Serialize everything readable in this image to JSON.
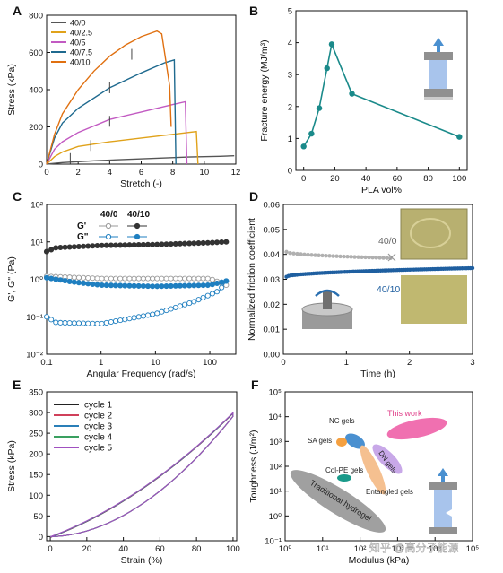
{
  "colors": {
    "c40_0": "#555555",
    "c40_2_5": "#e0a21a",
    "c40_5": "#c25ac2",
    "c40_7_5": "#1f6a8f",
    "c40_10": "#e07010",
    "panelB": "#1a8a8a",
    "panelD_grey": "#b0b0b0",
    "panelD_blue": "#1f5fa0",
    "cycles": [
      "#222222",
      "#d0405a",
      "#2a7fb8",
      "#3aa060",
      "#a050c0"
    ],
    "F_pink": "#f070b0",
    "F_blue": "#4a90d0",
    "F_orange": "#f5a040",
    "F_peach": "#f5c090",
    "F_violet": "#c8a8e8",
    "F_teal": "#1a9a8a",
    "F_grey": "#a0a0a0"
  },
  "chart_data": [
    {
      "id": "A",
      "panel_label": "A",
      "type": "line",
      "xlabel": "Stretch (-)",
      "ylabel": "Stress (kPa)",
      "xlim": [
        0,
        12
      ],
      "ylim": [
        0,
        800
      ],
      "xticks": [
        "0",
        "2",
        "4",
        "6",
        "8",
        "10",
        "12"
      ],
      "yticks": [
        "0",
        "200",
        "400",
        "600",
        "800"
      ],
      "legend": "top-left",
      "series": [
        {
          "name": "40/0",
          "color": "#555555",
          "points": [
            [
              0,
              0
            ],
            [
              1,
              8
            ],
            [
              3,
              18
            ],
            [
              5,
              25
            ],
            [
              7,
              32
            ],
            [
              9,
              38
            ],
            [
              11,
              42
            ],
            [
              11.9,
              45
            ]
          ]
        },
        {
          "name": "40/2.5",
          "color": "#e0a21a",
          "points": [
            [
              0,
              0
            ],
            [
              0.5,
              40
            ],
            [
              1,
              65
            ],
            [
              2,
              95
            ],
            [
              4,
              120
            ],
            [
              6,
              140
            ],
            [
              8,
              160
            ],
            [
              9.5,
              175
            ],
            [
              9.6,
              0
            ]
          ]
        },
        {
          "name": "40/5",
          "color": "#c25ac2",
          "points": [
            [
              0,
              0
            ],
            [
              0.5,
              80
            ],
            [
              1,
              120
            ],
            [
              2,
              170
            ],
            [
              4,
              240
            ],
            [
              6,
              280
            ],
            [
              8,
              320
            ],
            [
              8.8,
              335
            ],
            [
              8.9,
              0
            ]
          ]
        },
        {
          "name": "40/7.5",
          "color": "#1f6a8f",
          "points": [
            [
              0,
              0
            ],
            [
              0.5,
              140
            ],
            [
              1,
              220
            ],
            [
              2,
              300
            ],
            [
              4,
              410
            ],
            [
              6,
              490
            ],
            [
              7.5,
              545
            ],
            [
              8.1,
              560
            ],
            [
              8.2,
              0
            ]
          ]
        },
        {
          "name": "40/10",
          "color": "#e07010",
          "points": [
            [
              0,
              0
            ],
            [
              0.5,
              160
            ],
            [
              1,
              270
            ],
            [
              2,
              400
            ],
            [
              3,
              500
            ],
            [
              4,
              580
            ],
            [
              5,
              640
            ],
            [
              6,
              685
            ],
            [
              7,
              715
            ],
            [
              7.3,
              700
            ],
            [
              7.8,
              420
            ],
            [
              7.9,
              200
            ]
          ]
        }
      ]
    },
    {
      "id": "B",
      "panel_label": "B",
      "type": "line",
      "xlabel": "PLA vol%",
      "ylabel": "Fracture energy (MJ/m³)",
      "xlim": [
        -5,
        105
      ],
      "ylim": [
        0,
        5
      ],
      "xticks": [
        "0",
        "20",
        "40",
        "60",
        "80",
        "100"
      ],
      "yticks": [
        "0",
        "1",
        "2",
        "3",
        "4",
        "5"
      ],
      "series": [
        {
          "name": "",
          "color": "#1a8a8a",
          "points": [
            [
              0,
              0.75
            ],
            [
              5,
              1.15
            ],
            [
              10,
              1.95
            ],
            [
              15,
              3.2
            ],
            [
              18,
              3.95
            ],
            [
              31,
              2.4
            ],
            [
              100,
              1.05
            ]
          ]
        }
      ]
    },
    {
      "id": "C",
      "panel_label": "C",
      "type": "line",
      "xlabel": "Angular Frequency (rad/s)",
      "ylabel": "G', G\" (Pa)",
      "log_x": true,
      "log_y": true,
      "xlim": [
        0.1,
        300
      ],
      "ylim": [
        0.01,
        100
      ],
      "xticks": [
        "0.1",
        "1",
        "10",
        "100"
      ],
      "yticks": [
        "10⁻²",
        "10⁻¹",
        "10⁰",
        "10¹",
        "10²"
      ],
      "legend_headers": [
        "40/0",
        "40/10"
      ],
      "legend_rows": [
        "G'",
        "G\""
      ],
      "series": [
        {
          "name": "G' 40/0",
          "color": "#999999",
          "hollow": true,
          "points": [
            [
              0.1,
              1.2
            ],
            [
              1,
              1.05
            ],
            [
              10,
              1.05
            ],
            [
              100,
              1.05
            ],
            [
              200,
              0.7
            ]
          ]
        },
        {
          "name": "G\" 40/0",
          "color": "#1f7fc0",
          "hollow": true,
          "points": [
            [
              0.1,
              0.1
            ],
            [
              0.15,
              0.07
            ],
            [
              1,
              0.065
            ],
            [
              10,
              0.12
            ],
            [
              50,
              0.25
            ],
            [
              150,
              0.5
            ],
            [
              200,
              0.9
            ]
          ]
        },
        {
          "name": "G' 40/10",
          "color": "#333333",
          "hollow": false,
          "points": [
            [
              0.1,
              5.5
            ],
            [
              0.15,
              7
            ],
            [
              1,
              8
            ],
            [
              10,
              8.5
            ],
            [
              100,
              9.5
            ],
            [
              200,
              10
            ]
          ]
        },
        {
          "name": "G\" 40/10",
          "color": "#1f7fc0",
          "hollow": false,
          "points": [
            [
              0.1,
              1.1
            ],
            [
              0.3,
              0.85
            ],
            [
              1,
              0.7
            ],
            [
              10,
              0.65
            ],
            [
              100,
              0.7
            ],
            [
              200,
              0.9
            ]
          ]
        }
      ]
    },
    {
      "id": "D",
      "panel_label": "D",
      "type": "scatter",
      "xlabel": "Time (h)",
      "ylabel": "Normalized friction coefficient",
      "xlim": [
        0,
        3
      ],
      "ylim": [
        0,
        0.06
      ],
      "xticks": [
        "0",
        "1",
        "2",
        "3"
      ],
      "yticks": [
        "0.00",
        "0.01",
        "0.02",
        "0.03",
        "0.04",
        "0.05",
        "0.06"
      ],
      "annotations": [
        "40/0",
        "40/10"
      ],
      "series": [
        {
          "name": "40/0",
          "color": "#b0b0b0",
          "x_start": 0.05,
          "x_end": 1.7,
          "y_start": 0.041,
          "y_end": 0.0385
        },
        {
          "name": "40/10",
          "color": "#1f5fa0",
          "x_start": 0.05,
          "x_end": 3.0,
          "y_start": 0.031,
          "y_end": 0.0345
        }
      ]
    },
    {
      "id": "E",
      "panel_label": "E",
      "type": "line",
      "xlabel": "Strain (%)",
      "ylabel": "Stress (kPa)",
      "xlim": [
        -2,
        102
      ],
      "ylim": [
        -10,
        350
      ],
      "xticks": [
        "0",
        "20",
        "40",
        "60",
        "80",
        "100"
      ],
      "yticks": [
        "0",
        "50",
        "100",
        "150",
        "200",
        "250",
        "300",
        "350"
      ],
      "legend": "top-left",
      "series": [
        {
          "name": "cycle 1",
          "color": "#222222",
          "offset": 0
        },
        {
          "name": "cycle 2",
          "color": "#d0405a",
          "offset": 2
        },
        {
          "name": "cycle 3",
          "color": "#2a7fb8",
          "offset": 4
        },
        {
          "name": "cycle 4",
          "color": "#3aa060",
          "offset": 6
        },
        {
          "name": "cycle 5",
          "color": "#a050c0",
          "offset": 8
        }
      ]
    },
    {
      "id": "F",
      "panel_label": "F",
      "type": "scatter",
      "xlabel": "Modulus (kPa)",
      "ylabel": "Toughness (J/m²)",
      "log_x": true,
      "log_y": true,
      "xlim": [
        1,
        100000
      ],
      "ylim": [
        0.1,
        100000
      ],
      "xticks": [
        "10⁰",
        "10¹",
        "10²",
        "10³",
        "10⁴",
        "10⁵"
      ],
      "yticks": [
        "10⁻¹",
        "10⁰",
        "10¹",
        "10²",
        "10³",
        "10⁴",
        "10⁵"
      ],
      "regions": [
        {
          "label": "This work",
          "color": "#f070b0",
          "label_color": "#e0408a"
        },
        {
          "label": "NC gels",
          "color": "#4a90d0"
        },
        {
          "label": "SA gels",
          "color": "#f5a040"
        },
        {
          "label": "DN gels",
          "color": "#c8a8e8"
        },
        {
          "label": "Col-PE gels",
          "color": "#1a9a8a"
        },
        {
          "label": "Entangled gels",
          "color": "#f5c090"
        },
        {
          "label": "Traditional hydrogel",
          "color": "#a0a0a0"
        }
      ]
    }
  ],
  "watermark": "知乎 @高分子能源"
}
